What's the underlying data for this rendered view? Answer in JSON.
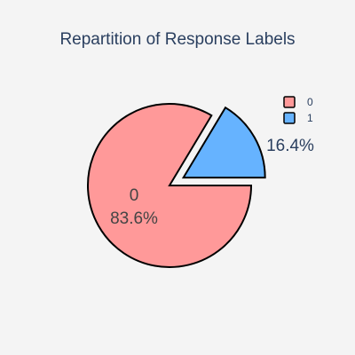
{
  "chart_data": {
    "type": "pie",
    "title": "Repartition of Response Labels",
    "slices": [
      {
        "label": "0",
        "value": 83.6,
        "display": "83.6%",
        "color": "#ff9999",
        "pulled": false
      },
      {
        "label": "1",
        "value": 16.4,
        "display": "16.4%",
        "color": "#66b3ff",
        "pulled": true
      }
    ],
    "legend": {
      "placement": "top-right",
      "entries": [
        "0",
        "1"
      ]
    },
    "outline_color": "#000000",
    "text_color": "#2a3f5f",
    "inside_text_color": "#444444",
    "background": "#f4f4f4"
  }
}
